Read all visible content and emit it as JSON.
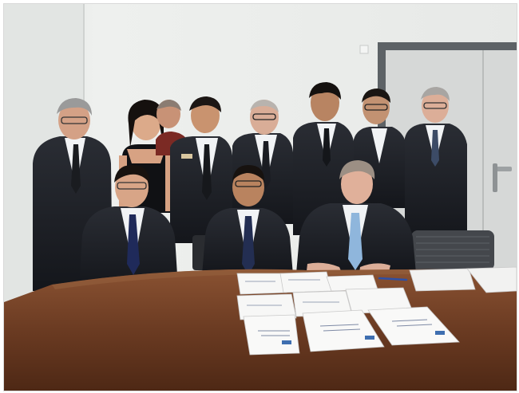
{
  "photo": {
    "scene": "signing-ceremony",
    "colors": {
      "wall": "#eceeec",
      "door": "#d5d7d6",
      "door_frame": "#5d6266",
      "table": "#6b3b22",
      "table_highlight": "#8a5232",
      "suit": "#1d1f25",
      "shirt": "#f1f3f5",
      "skin": "#d7a283",
      "hair": "#1c1614",
      "paper": "#f7f7f6"
    }
  }
}
